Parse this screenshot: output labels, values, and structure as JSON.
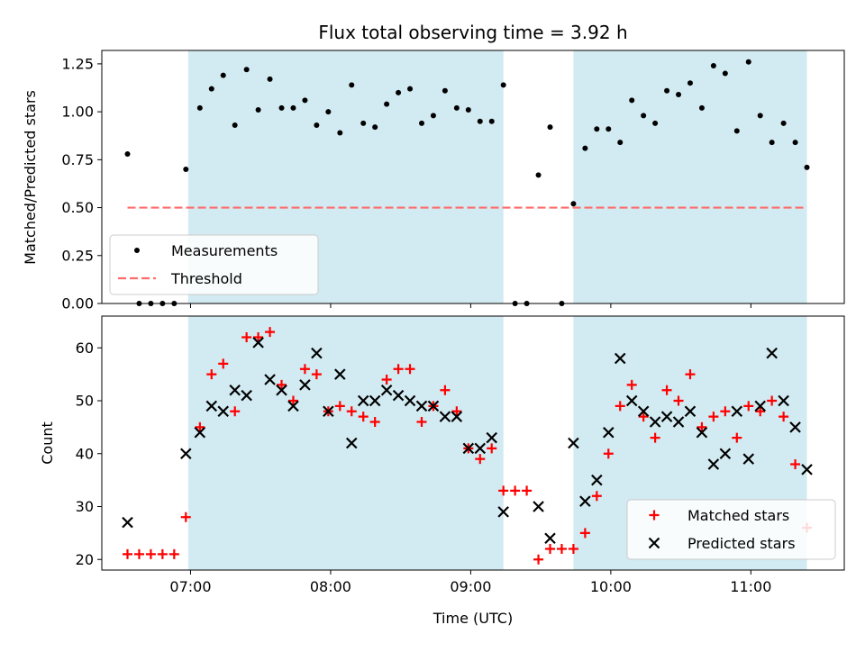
{
  "chart_data": [
    {
      "type": "scatter",
      "title": "Flux total observing time = 3.92 h",
      "ylabel": "Matched/Predicted stars",
      "xlabel": "",
      "xlim": [
        "06:22",
        "11:40"
      ],
      "ylim": [
        0,
        1.32
      ],
      "yticks": [
        "0.00",
        "0.25",
        "0.50",
        "0.75",
        "1.00",
        "1.25"
      ],
      "shaded_intervals": [
        [
          "06:59",
          "09:14"
        ],
        [
          "09:44",
          "11:24"
        ]
      ],
      "shade_color": "#add8e6",
      "legend_position": "lower-left",
      "legend": [
        {
          "label": "Measurements",
          "marker": "dot",
          "color": "#000000"
        },
        {
          "label": "Threshold",
          "marker": "dashed-line",
          "color": "#ff6b6b"
        }
      ],
      "threshold": {
        "y": 0.5,
        "from": "06:33",
        "to": "11:24"
      },
      "series": [
        {
          "name": "Measurements",
          "points": [
            [
              "06:33",
              0.78
            ],
            [
              "06:38",
              0.0
            ],
            [
              "06:43",
              0.0
            ],
            [
              "06:48",
              0.0
            ],
            [
              "06:53",
              0.0
            ],
            [
              "06:58",
              0.7
            ],
            [
              "07:04",
              1.02
            ],
            [
              "07:09",
              1.12
            ],
            [
              "07:14",
              1.19
            ],
            [
              "07:19",
              0.93
            ],
            [
              "07:24",
              1.22
            ],
            [
              "07:29",
              1.01
            ],
            [
              "07:34",
              1.17
            ],
            [
              "07:39",
              1.02
            ],
            [
              "07:44",
              1.02
            ],
            [
              "07:49",
              1.06
            ],
            [
              "07:54",
              0.93
            ],
            [
              "07:59",
              1.0
            ],
            [
              "08:04",
              0.89
            ],
            [
              "08:09",
              1.14
            ],
            [
              "08:14",
              0.94
            ],
            [
              "08:19",
              0.92
            ],
            [
              "08:24",
              1.04
            ],
            [
              "08:29",
              1.1
            ],
            [
              "08:34",
              1.12
            ],
            [
              "08:39",
              0.94
            ],
            [
              "08:44",
              0.98
            ],
            [
              "08:49",
              1.11
            ],
            [
              "08:54",
              1.02
            ],
            [
              "08:59",
              1.01
            ],
            [
              "09:04",
              0.95
            ],
            [
              "09:09",
              0.95
            ],
            [
              "09:14",
              1.14
            ],
            [
              "09:19",
              0.0
            ],
            [
              "09:24",
              0.0
            ],
            [
              "09:29",
              0.67
            ],
            [
              "09:34",
              0.92
            ],
            [
              "09:39",
              0.0
            ],
            [
              "09:44",
              0.52
            ],
            [
              "09:49",
              0.81
            ],
            [
              "09:54",
              0.91
            ],
            [
              "09:59",
              0.91
            ],
            [
              "10:04",
              0.84
            ],
            [
              "10:09",
              1.06
            ],
            [
              "10:14",
              0.98
            ],
            [
              "10:19",
              0.94
            ],
            [
              "10:24",
              1.11
            ],
            [
              "10:29",
              1.09
            ],
            [
              "10:34",
              1.15
            ],
            [
              "10:39",
              1.02
            ],
            [
              "10:44",
              1.24
            ],
            [
              "10:49",
              1.2
            ],
            [
              "10:54",
              0.9
            ],
            [
              "10:59",
              1.26
            ],
            [
              "11:04",
              0.98
            ],
            [
              "11:09",
              0.84
            ],
            [
              "11:14",
              0.94
            ],
            [
              "11:19",
              0.84
            ],
            [
              "11:24",
              0.71
            ]
          ]
        }
      ]
    },
    {
      "type": "scatter",
      "title": "",
      "ylabel": "Count",
      "xlabel": "Time (UTC)",
      "xlim": [
        "06:22",
        "11:40"
      ],
      "ylim": [
        18,
        66
      ],
      "yticks": [
        "20",
        "30",
        "40",
        "50",
        "60"
      ],
      "xticks": [
        "07:00",
        "08:00",
        "09:00",
        "10:00",
        "11:00"
      ],
      "shaded_intervals": [
        [
          "06:59",
          "09:14"
        ],
        [
          "09:44",
          "11:24"
        ]
      ],
      "legend_position": "lower-right",
      "legend": [
        {
          "label": "Matched stars",
          "marker": "plus",
          "color": "#ff0000"
        },
        {
          "label": "Predicted stars",
          "marker": "x",
          "color": "#000000"
        }
      ],
      "series": [
        {
          "name": "Matched stars",
          "points": [
            [
              "06:33",
              21
            ],
            [
              "06:38",
              21
            ],
            [
              "06:43",
              21
            ],
            [
              "06:48",
              21
            ],
            [
              "06:53",
              21
            ],
            [
              "06:58",
              28
            ],
            [
              "07:04",
              45
            ],
            [
              "07:09",
              55
            ],
            [
              "07:14",
              57
            ],
            [
              "07:19",
              48
            ],
            [
              "07:24",
              62
            ],
            [
              "07:29",
              62
            ],
            [
              "07:34",
              63
            ],
            [
              "07:39",
              53
            ],
            [
              "07:44",
              50
            ],
            [
              "07:49",
              56
            ],
            [
              "07:54",
              55
            ],
            [
              "07:59",
              48
            ],
            [
              "08:04",
              49
            ],
            [
              "08:09",
              48
            ],
            [
              "08:14",
              47
            ],
            [
              "08:19",
              46
            ],
            [
              "08:24",
              54
            ],
            [
              "08:29",
              56
            ],
            [
              "08:34",
              56
            ],
            [
              "08:39",
              46
            ],
            [
              "08:44",
              49
            ],
            [
              "08:49",
              52
            ],
            [
              "08:54",
              48
            ],
            [
              "08:59",
              41
            ],
            [
              "09:04",
              39
            ],
            [
              "09:09",
              41
            ],
            [
              "09:14",
              33
            ],
            [
              "09:19",
              33
            ],
            [
              "09:24",
              33
            ],
            [
              "09:29",
              20
            ],
            [
              "09:34",
              22
            ],
            [
              "09:39",
              22
            ],
            [
              "09:44",
              22
            ],
            [
              "09:49",
              25
            ],
            [
              "09:54",
              32
            ],
            [
              "09:59",
              40
            ],
            [
              "10:04",
              49
            ],
            [
              "10:09",
              53
            ],
            [
              "10:14",
              47
            ],
            [
              "10:19",
              43
            ],
            [
              "10:24",
              52
            ],
            [
              "10:29",
              50
            ],
            [
              "10:34",
              55
            ],
            [
              "10:39",
              45
            ],
            [
              "10:44",
              47
            ],
            [
              "10:49",
              48
            ],
            [
              "10:54",
              43
            ],
            [
              "10:59",
              49
            ],
            [
              "11:04",
              48
            ],
            [
              "11:09",
              50
            ],
            [
              "11:14",
              47
            ],
            [
              "11:19",
              38
            ],
            [
              "11:24",
              26
            ]
          ]
        },
        {
          "name": "Predicted stars",
          "points": [
            [
              "06:33",
              27
            ],
            [
              "06:58",
              40
            ],
            [
              "07:04",
              44
            ],
            [
              "07:09",
              49
            ],
            [
              "07:14",
              48
            ],
            [
              "07:19",
              52
            ],
            [
              "07:24",
              51
            ],
            [
              "07:29",
              61
            ],
            [
              "07:34",
              54
            ],
            [
              "07:39",
              52
            ],
            [
              "07:44",
              49
            ],
            [
              "07:49",
              53
            ],
            [
              "07:54",
              59
            ],
            [
              "07:59",
              48
            ],
            [
              "08:04",
              55
            ],
            [
              "08:09",
              42
            ],
            [
              "08:14",
              50
            ],
            [
              "08:19",
              50
            ],
            [
              "08:24",
              52
            ],
            [
              "08:29",
              51
            ],
            [
              "08:34",
              50
            ],
            [
              "08:39",
              49
            ],
            [
              "08:44",
              49
            ],
            [
              "08:49",
              47
            ],
            [
              "08:54",
              47
            ],
            [
              "08:59",
              41
            ],
            [
              "09:04",
              41
            ],
            [
              "09:09",
              43
            ],
            [
              "09:14",
              29
            ],
            [
              "09:29",
              30
            ],
            [
              "09:34",
              24
            ],
            [
              "09:44",
              42
            ],
            [
              "09:49",
              31
            ],
            [
              "09:54",
              35
            ],
            [
              "09:59",
              44
            ],
            [
              "10:04",
              58
            ],
            [
              "10:09",
              50
            ],
            [
              "10:14",
              48
            ],
            [
              "10:19",
              46
            ],
            [
              "10:24",
              47
            ],
            [
              "10:29",
              46
            ],
            [
              "10:34",
              48
            ],
            [
              "10:39",
              44
            ],
            [
              "10:44",
              38
            ],
            [
              "10:49",
              40
            ],
            [
              "10:54",
              48
            ],
            [
              "10:59",
              39
            ],
            [
              "11:04",
              49
            ],
            [
              "11:09",
              59
            ],
            [
              "11:14",
              50
            ],
            [
              "11:19",
              45
            ],
            [
              "11:24",
              37
            ]
          ]
        }
      ]
    }
  ]
}
